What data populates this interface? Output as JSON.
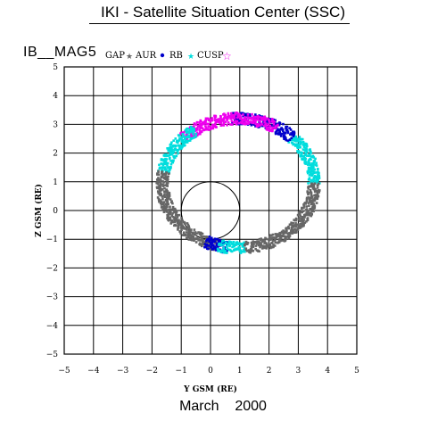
{
  "header": {
    "title": "IKI - Satellite Situation Center (SSC)",
    "satellite": "IB__MAG5"
  },
  "footer": {
    "month": "March",
    "year": "2000"
  },
  "chart_data": {
    "type": "scatter",
    "xlabel": "Y GSM (RE)",
    "ylabel": "Z GSM (RE)",
    "xlim": [
      -5,
      5
    ],
    "ylim": [
      -5,
      5
    ],
    "xticks": [
      -5,
      -4,
      -3,
      -2,
      -1,
      0,
      1,
      2,
      3,
      4,
      5
    ],
    "yticks": [
      -5,
      -4,
      -3,
      -2,
      -1,
      0,
      1,
      2,
      3,
      4,
      5
    ],
    "grid": true,
    "legend_position": "top-left",
    "earth_circle": {
      "center": [
        0,
        0
      ],
      "radius": 1
    },
    "series": [
      {
        "name": "GAP",
        "marker": "star",
        "color": "#666666"
      },
      {
        "name": "AUR",
        "marker": "dot",
        "color": "#0000cc"
      },
      {
        "name": "RB",
        "marker": "star",
        "color": "#00dddd"
      },
      {
        "name": "CUSP",
        "marker": "square",
        "color": "#ee00ee"
      }
    ],
    "trajectory": {
      "center": [
        0.95,
        0.95
      ],
      "semi_axis_y": 2.6,
      "semi_axis_z": 2.25,
      "segments": [
        {
          "series": "RB",
          "from_deg": 0,
          "to_deg": 45
        },
        {
          "series": "AUR",
          "from_deg": 45,
          "to_deg": 95
        },
        {
          "series": "CUSP",
          "from_deg": 60,
          "to_deg": 135
        },
        {
          "series": "RB",
          "from_deg": 125,
          "to_deg": 170
        },
        {
          "series": "GAP",
          "from_deg": 170,
          "to_deg": 255
        },
        {
          "series": "AUR",
          "from_deg": 245,
          "to_deg": 262
        },
        {
          "series": "RB",
          "from_deg": 255,
          "to_deg": 275
        },
        {
          "series": "GAP",
          "from_deg": 275,
          "to_deg": 360
        }
      ]
    }
  }
}
